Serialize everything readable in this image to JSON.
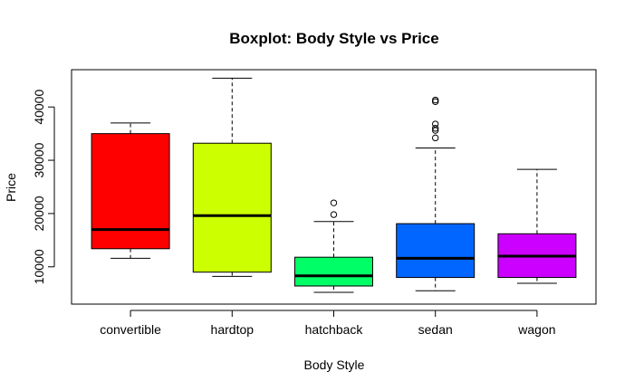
{
  "chart_data": {
    "type": "boxplot",
    "title": "Boxplot: Body Style vs Price",
    "xlabel": "Body Style",
    "ylabel": "Price",
    "ylim": [
      3000,
      47000
    ],
    "yticks": [
      10000,
      20000,
      30000,
      40000
    ],
    "ytick_labels": [
      "10000",
      "20000",
      "30000",
      "40000"
    ],
    "grid": false,
    "legend": "none",
    "categories": [
      "convertible",
      "hardtop",
      "hatchback",
      "sedan",
      "wagon"
    ],
    "boxes": [
      {
        "category": "convertible",
        "color": "#FF0000",
        "whisker_low": 11600,
        "q1": 13400,
        "median": 17000,
        "q3": 35000,
        "whisker_high": 37000,
        "outliers": []
      },
      {
        "category": "hardtop",
        "color": "#CCFF00",
        "whisker_low": 8200,
        "q1": 9000,
        "median": 19600,
        "q3": 33200,
        "whisker_high": 45400,
        "outliers": []
      },
      {
        "category": "hatchback",
        "color": "#00FF66",
        "whisker_low": 5200,
        "q1": 6400,
        "median": 8300,
        "q3": 11800,
        "whisker_high": 18500,
        "outliers": [
          19800,
          22000
        ]
      },
      {
        "category": "sedan",
        "color": "#0066FF",
        "whisker_low": 5500,
        "q1": 8000,
        "median": 11600,
        "q3": 18100,
        "whisker_high": 32300,
        "outliers": [
          34200,
          35600,
          36000,
          36800,
          41000,
          41300
        ]
      },
      {
        "category": "wagon",
        "color": "#CC00FF",
        "whisker_low": 6900,
        "q1": 8000,
        "median": 12000,
        "q3": 16200,
        "whisker_high": 28300,
        "outliers": []
      }
    ]
  }
}
